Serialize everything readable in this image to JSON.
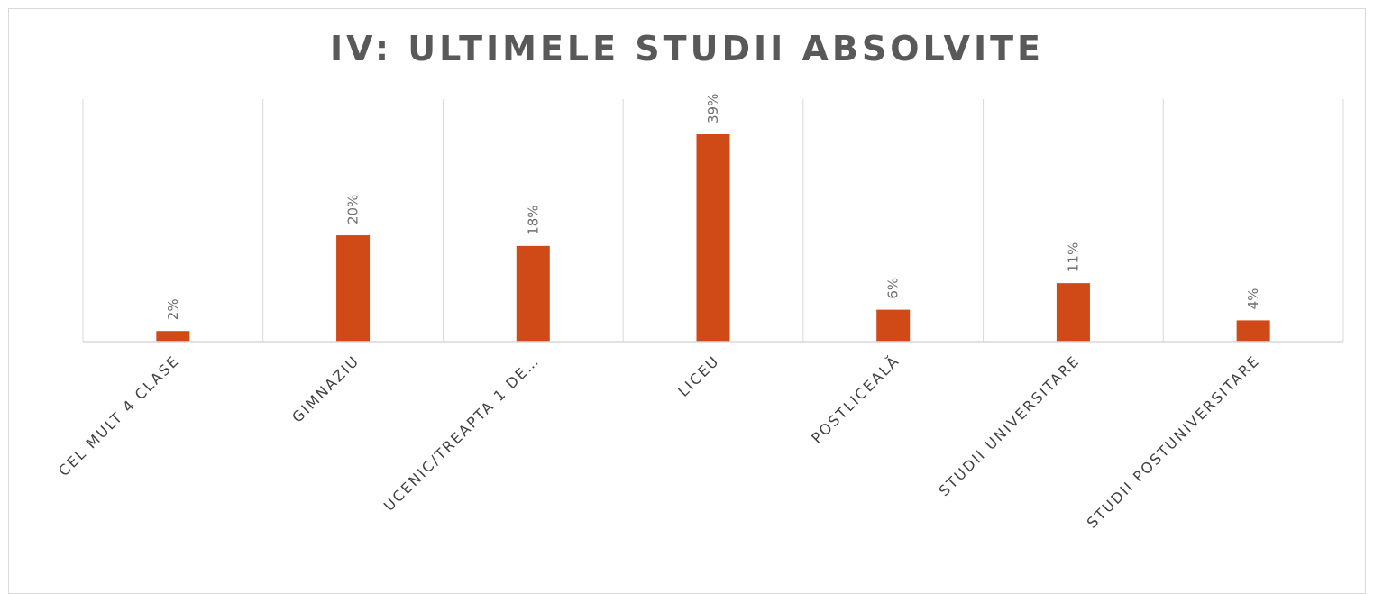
{
  "chart_data": {
    "type": "bar",
    "title": "IV: ULTIMELE STUDII ABSOLVITE",
    "categories": [
      "CEL MULT 4 CLASE",
      "GIMNAZIU",
      "UCENIC/TREAPTA 1 DE…",
      "LICEU",
      "POSTLICEALĂ",
      "STUDII UNIVERSITARE",
      "STUDII POSTUNIVERSITARE"
    ],
    "values": [
      2,
      20,
      18,
      39,
      6,
      11,
      4
    ],
    "data_labels": [
      "2%",
      "20%",
      "18%",
      "39%",
      "6%",
      "11%",
      "4%"
    ],
    "xlabel": "",
    "ylabel": "",
    "ylim": [
      0,
      39
    ],
    "grid": "vertical category separators",
    "legend": "none",
    "bar_color": "#D04A17",
    "gridline_color": "#d9d9d9",
    "title_color": "#595959"
  }
}
